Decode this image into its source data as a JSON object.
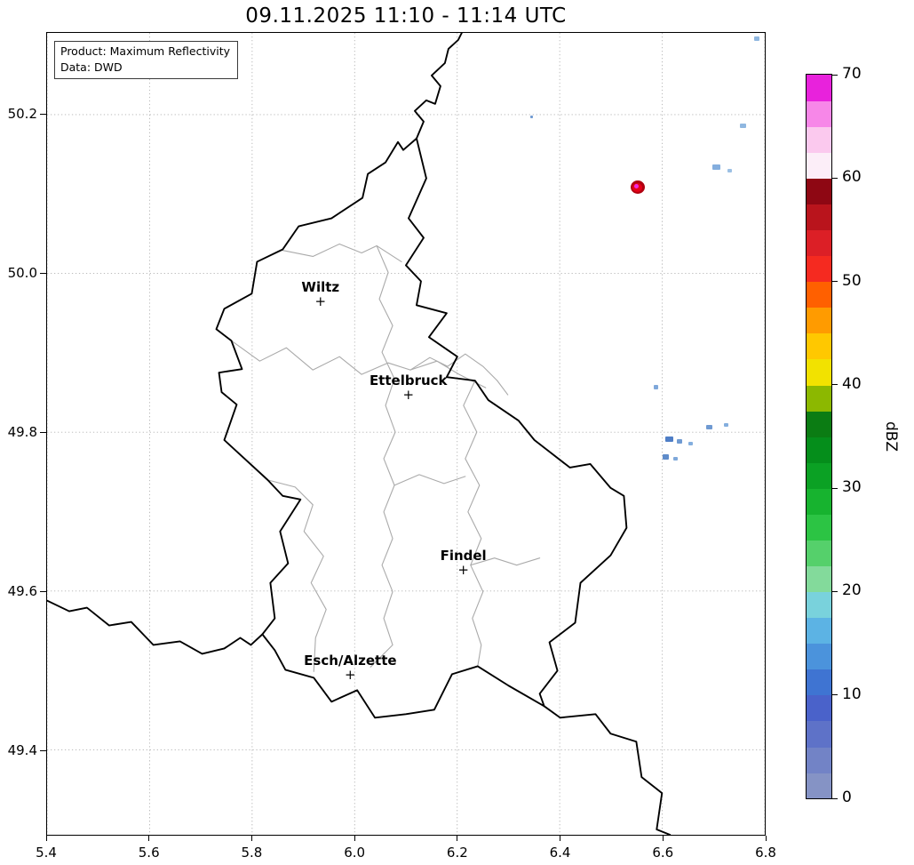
{
  "title": "09.11.2025 11:10 - 11:14 UTC",
  "info_box": {
    "line1": "Product: Maximum Reflectivity",
    "line2": "Data: DWD"
  },
  "axes": {
    "x": {
      "min": 5.4,
      "max": 6.8,
      "ticks": [
        "5.4",
        "5.6",
        "5.8",
        "6.0",
        "6.2",
        "6.4",
        "6.6",
        "6.8"
      ]
    },
    "y": {
      "min": 49.293,
      "max": 50.303,
      "ticks": [
        "49.4",
        "49.6",
        "49.8",
        "50.0",
        "50.2"
      ]
    }
  },
  "cities": [
    {
      "name": "Wiltz",
      "lon": 5.932,
      "lat": 49.965
    },
    {
      "name": "Ettelbruck",
      "lon": 6.103,
      "lat": 49.847
    },
    {
      "name": "Findel",
      "lon": 6.21,
      "lat": 49.627
    },
    {
      "name": "Esch/Alzette",
      "lon": 5.99,
      "lat": 49.495
    }
  ],
  "colorbar": {
    "label": "dBZ",
    "min": 0,
    "max": 70,
    "ticks": [
      0,
      10,
      20,
      30,
      40,
      50,
      60,
      70
    ],
    "colors_bottom_to_top": [
      "#8593c5",
      "#7283c6",
      "#5e72c8",
      "#4a62ca",
      "#3f74d2",
      "#4b93dc",
      "#5cb3e4",
      "#79d2dc",
      "#83da9b",
      "#55d06b",
      "#2cc444",
      "#17b32f",
      "#0ba124",
      "#058e1b",
      "#0b7c13",
      "#8cb800",
      "#f2e200",
      "#ffc800",
      "#ff9b00",
      "#ff6000",
      "#f52a20",
      "#dc1f26",
      "#b9141c",
      "#8e0713",
      "#fceef8",
      "#fbc9ee",
      "#f787e8",
      "#e822dc"
    ]
  },
  "echoes": [
    {
      "lon": 6.781,
      "lat": 50.296,
      "w": 6,
      "h": 5,
      "color": "#8fb7e0"
    },
    {
      "lon": 6.755,
      "lat": 50.186,
      "w": 7,
      "h": 5,
      "color": "#8fb7e0"
    },
    {
      "lon": 6.703,
      "lat": 50.134,
      "w": 9,
      "h": 6,
      "color": "#84aede"
    },
    {
      "lon": 6.729,
      "lat": 50.13,
      "w": 5,
      "h": 4,
      "color": "#9cc0e4"
    },
    {
      "lon": 6.342,
      "lat": 50.197,
      "w": 3,
      "h": 3,
      "color": "#6f9ad2"
    },
    {
      "lon": 6.549,
      "lat": 50.109,
      "w": 16,
      "h": 15,
      "color": "#b00010",
      "round": true
    },
    {
      "lon": 6.549,
      "lat": 50.109,
      "w": 11,
      "h": 10,
      "color": "#e60018",
      "round": true
    },
    {
      "lon": 6.546,
      "lat": 50.11,
      "w": 5,
      "h": 5,
      "color": "#ee29e0",
      "round": true
    },
    {
      "lon": 6.584,
      "lat": 49.858,
      "w": 5,
      "h": 5,
      "color": "#7fa8da"
    },
    {
      "lon": 6.688,
      "lat": 49.808,
      "w": 7,
      "h": 5,
      "color": "#6f9ad2"
    },
    {
      "lon": 6.722,
      "lat": 49.81,
      "w": 5,
      "h": 4,
      "color": "#84aede"
    },
    {
      "lon": 6.61,
      "lat": 49.792,
      "w": 9,
      "h": 6,
      "color": "#4f7ec6"
    },
    {
      "lon": 6.631,
      "lat": 49.79,
      "w": 6,
      "h": 5,
      "color": "#6f9ad2"
    },
    {
      "lon": 6.653,
      "lat": 49.787,
      "w": 5,
      "h": 4,
      "color": "#84aede"
    },
    {
      "lon": 6.603,
      "lat": 49.77,
      "w": 7,
      "h": 6,
      "color": "#5f8cca"
    },
    {
      "lon": 6.622,
      "lat": 49.768,
      "w": 5,
      "h": 4,
      "color": "#7fa8da"
    }
  ],
  "style": {
    "country_border": "#000000",
    "district_border": "#aaaaaa",
    "grid": "#b3b3b3",
    "background": "#ffffff"
  }
}
